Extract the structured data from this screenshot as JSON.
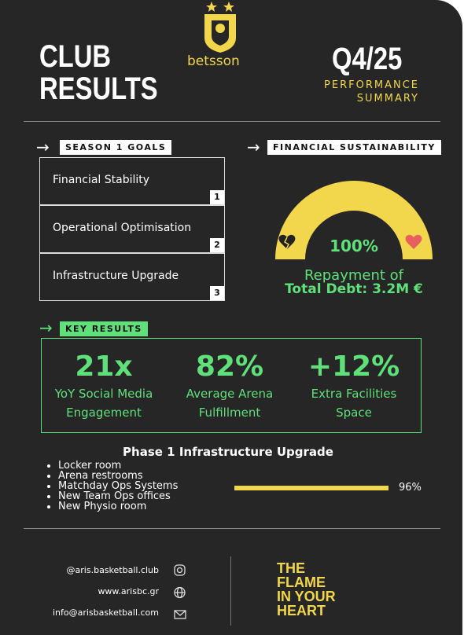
{
  "header": {
    "title_lines": [
      "CLUB",
      "RESULTS"
    ],
    "sponsor": "betsson",
    "period": "Q4/25",
    "subtitle_lines": [
      "PERFORMANCE",
      "SUMMARY"
    ]
  },
  "goals": {
    "heading": "SEASON 1 GOALS",
    "items": [
      {
        "label": "Financial Stability",
        "number": "1"
      },
      {
        "label": "Operational Optimisation",
        "number": "2"
      },
      {
        "label": "Infrastructure Upgrade",
        "number": "3"
      }
    ]
  },
  "financial": {
    "heading": "FINANCIAL SUSTAINABILITY",
    "percent": "100%",
    "caption_lines": [
      "Repayment of",
      "Total Debt: 3.2M €"
    ]
  },
  "key_results": {
    "heading": "KEY RESULTS",
    "stats": [
      {
        "value": "21x",
        "label_lines": [
          "YoY Social Media",
          "Engagement"
        ]
      },
      {
        "value": "82%",
        "label_lines": [
          "Average Arena",
          "Fulfillment"
        ]
      },
      {
        "value": "+12%",
        "label_lines": [
          "Extra Facilities",
          "Space"
        ]
      }
    ]
  },
  "phase": {
    "title": "Phase 1 Infrastructure Upgrade",
    "items": [
      "Locker room",
      "Arena restrooms",
      "Matchday Ops Systems",
      "New Team Ops offices",
      "New Physio room"
    ],
    "progress_label": "96%"
  },
  "footer": {
    "contacts": [
      "@aris.basketball.club",
      "www.arisbc.gr",
      "info@arisbasketball.com"
    ],
    "slogan_lines": [
      "THE",
      "FLAME",
      "IN YOUR",
      "HEART"
    ]
  }
}
